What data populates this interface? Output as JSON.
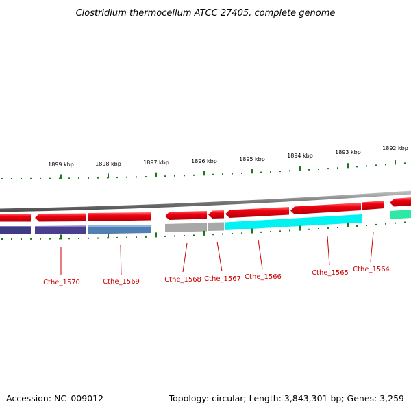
{
  "title": "Clostridium thermocellum ATCC 27405, complete genome",
  "footer": {
    "accession": "Accession: NC_009012",
    "summary": "Topology: circular; Length: 3,843,301 bp; Genes: 3,259"
  },
  "kbp_labels": [
    "1899 kbp",
    "1898 kbp",
    "1897 kbp",
    "1896 kbp",
    "1895 kbp",
    "1894 kbp",
    "1893 kbp",
    "1892 kbp"
  ],
  "genes": [
    {
      "name": "",
      "strand": "forward",
      "color": "#e8000e",
      "cog_color": "#3f3c86"
    },
    {
      "name": "Cthe_1570",
      "strand": "forward",
      "color": "#e8000e",
      "cog_color": "#4a3f8e"
    },
    {
      "name": "Cthe_1569",
      "strand": "forward",
      "color": "#e8000e",
      "cog_color": "#4f7fb3"
    },
    {
      "name": "Cthe_1568",
      "strand": "forward",
      "color": "#e8000e",
      "cog_color": "#a8a8a8"
    },
    {
      "name": "Cthe_1567",
      "strand": "forward",
      "color": "#e8000e",
      "cog_color": "#a8a8a8"
    },
    {
      "name": "Cthe_1566",
      "strand": "forward",
      "color": "#e8000e",
      "cog_color": "#00f5f5"
    },
    {
      "name": "Cthe_1565",
      "strand": "forward",
      "color": "#e8000e",
      "cog_color": "#00f5f5"
    },
    {
      "name": "Cthe_1564",
      "strand": "forward",
      "color": "#e8000e",
      "cog_color": ""
    },
    {
      "name": "",
      "strand": "forward",
      "color": "#e8000e",
      "cog_color": "#2ee8a5"
    }
  ],
  "colors": {
    "backbone": "#7a7a7a",
    "tick": "#1a7a1a",
    "gene_label": "#cc0000"
  }
}
